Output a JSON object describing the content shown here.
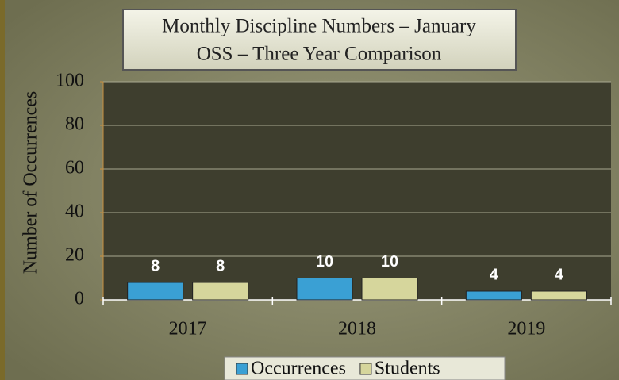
{
  "chart_data": {
    "type": "bar",
    "title": "Monthly Discipline Numbers – January",
    "subtitle": "OSS – Three Year Comparison",
    "y_label": "Number of Occurrences",
    "categories": [
      "2017",
      "2018",
      "2019"
    ],
    "series": [
      {
        "name": "Occurrences",
        "color": "#3aa0d4",
        "values": [
          8,
          10,
          4
        ]
      },
      {
        "name": "Students",
        "color": "#d6d69c",
        "values": [
          8,
          10,
          4
        ]
      }
    ],
    "ylim": [
      0,
      100
    ],
    "yticks": [
      0,
      20,
      40,
      60,
      80,
      100
    ],
    "grid": true
  }
}
